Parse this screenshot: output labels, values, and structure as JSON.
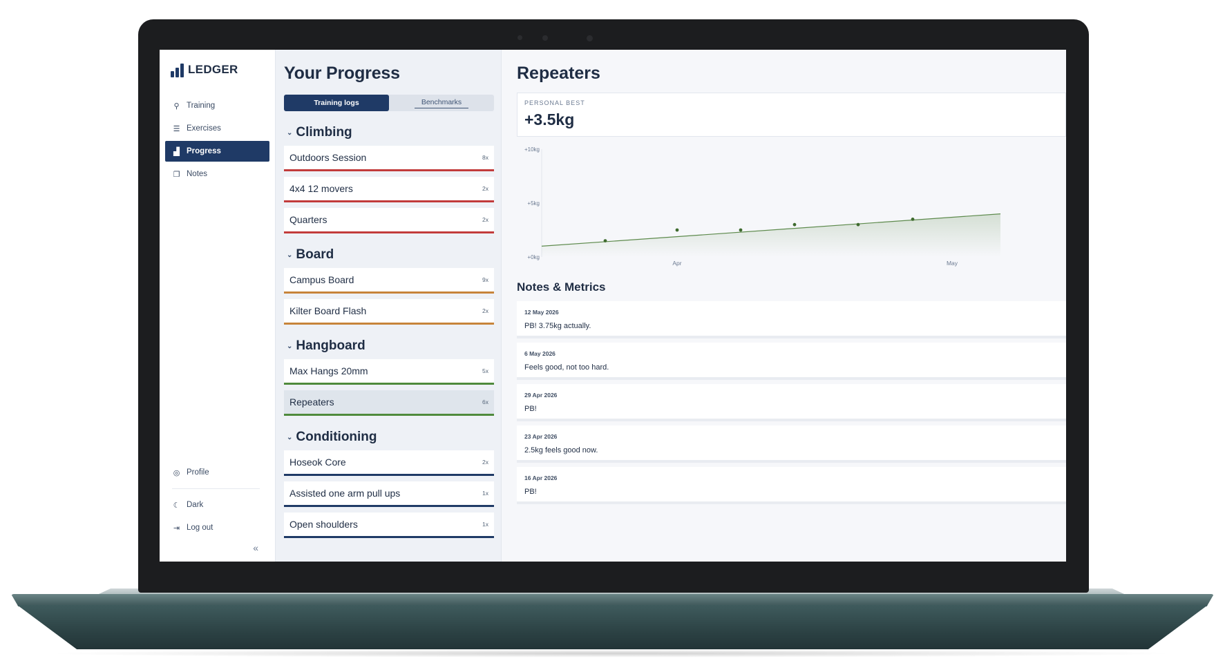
{
  "app": {
    "name": "LEDGER"
  },
  "sidebar": {
    "items": [
      {
        "label": "Training",
        "icon": "link-icon"
      },
      {
        "label": "Exercises",
        "icon": "list-icon"
      },
      {
        "label": "Progress",
        "icon": "chart-icon",
        "active": true
      },
      {
        "label": "Notes",
        "icon": "notes-icon"
      }
    ],
    "bottom": [
      {
        "label": "Profile",
        "icon": "profile-icon"
      },
      {
        "label": "Dark",
        "icon": "moon-icon"
      },
      {
        "label": "Log out",
        "icon": "logout-icon"
      }
    ],
    "collapse_glyph": "«"
  },
  "progress": {
    "title": "Your Progress",
    "tabs": [
      {
        "label": "Training logs",
        "active": true
      },
      {
        "label": "Benchmarks"
      }
    ],
    "groups": [
      {
        "name": "Climbing",
        "color": "#c23b3b",
        "items": [
          {
            "label": "Outdoors Session",
            "count": "8x"
          },
          {
            "label": "4x4 12 movers",
            "count": "2x"
          },
          {
            "label": "Quarters",
            "count": "2x"
          }
        ]
      },
      {
        "name": "Board",
        "color": "#c7843a",
        "items": [
          {
            "label": "Campus Board",
            "count": "9x"
          },
          {
            "label": "Kilter Board Flash",
            "count": "2x"
          }
        ]
      },
      {
        "name": "Hangboard",
        "color": "#4f8a3c",
        "items": [
          {
            "label": "Max Hangs 20mm",
            "count": "5x"
          },
          {
            "label": "Repeaters",
            "count": "6x",
            "selected": true
          }
        ]
      },
      {
        "name": "Conditioning",
        "color": "#1f3a66",
        "items": [
          {
            "label": "Hoseok Core",
            "count": "2x"
          },
          {
            "label": "Assisted one arm pull ups",
            "count": "1x"
          },
          {
            "label": "Open shoulders",
            "count": "1x"
          }
        ]
      }
    ]
  },
  "detail": {
    "title": "Repeaters",
    "personal_best_label": "PERSONAL BEST",
    "personal_best_value": "+3.5kg",
    "notes_title": "Notes & Metrics",
    "notes": [
      {
        "date": "12 May 2026",
        "text": "PB! 3.75kg actually."
      },
      {
        "date": "6 May 2026",
        "text": "Feels good, not too hard."
      },
      {
        "date": "29 Apr 2026",
        "text": "PB!"
      },
      {
        "date": "23 Apr 2026",
        "text": "2.5kg feels good now."
      },
      {
        "date": "16 Apr 2026",
        "text": "PB!"
      }
    ]
  },
  "chart_data": {
    "type": "line",
    "y_tick_labels": [
      "+10kg",
      "+5kg",
      "+0kg"
    ],
    "x_tick_labels": [
      "Apr",
      "May"
    ],
    "ylim": [
      0,
      10
    ],
    "series": [
      {
        "values": [
          1.5,
          2.5,
          2.5,
          3.0,
          3.0,
          3.5
        ]
      }
    ],
    "trend_end": 4.0,
    "line_color": "#5d8a4c"
  }
}
